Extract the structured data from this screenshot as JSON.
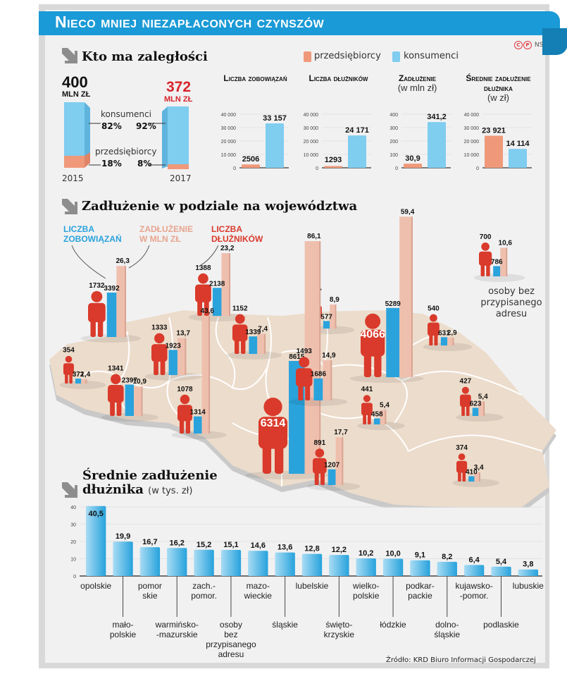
{
  "header": {
    "title": "Nieco mniej niezapłaconych czynszów",
    "credit": {
      "icons": [
        "copyright-icon",
        "p-icon"
      ],
      "author": "NS"
    }
  },
  "colors": {
    "banner": "#1a9ad6",
    "przedsiebiorcy": "#f0997a",
    "konsumenci": "#7fcdef",
    "count_bar": "#2aa3dc",
    "debt_bar": "#efbfae",
    "debtors_figure": "#d93a2b",
    "map_fill": "#ecdccb",
    "highlight_red": "#d8232a"
  },
  "section1": {
    "heading": "Kto ma zaległości",
    "legend": [
      {
        "label": "przedsiębiorcy",
        "color": "#f0997a"
      },
      {
        "label": "konsumenci",
        "color": "#7fcdef"
      }
    ],
    "totals": {
      "y2015": {
        "value": "400",
        "unit": "MLN ZŁ",
        "year": "2015"
      },
      "y2017": {
        "value": "372",
        "unit": "MLN ZŁ",
        "year": "2017"
      },
      "konsumenci_label": "konsumenci",
      "przedsiebiorcy_label": "przedsiębiorcy",
      "konsumenci_2015": "82%",
      "konsumenci_2017": "92%",
      "przedsiebiorcy_2015": "18%",
      "przedsiebiorcy_2017": "8%"
    }
  },
  "section2": {
    "heading": "Zadłużenie w podziale na województwa",
    "legend": {
      "count": "LICZBA ZOBOWIĄZAŃ",
      "debt": "ZADŁUŻENIE W MLN ZŁ",
      "debtors": "LICZBA DŁUŻNIKÓW"
    },
    "special_region_label": "osoby bez przypisanego adresu"
  },
  "section3": {
    "heading_line1": "Średnie zadłużenie",
    "heading_line2": "dłużnika",
    "unit": "(w tys. zł)"
  },
  "source": "Źródło: KRD Biuro Informacji Gospodarczej",
  "chart_data": [
    {
      "type": "bar",
      "title": "Kto ma zaległości – struktura zadłużenia",
      "categories": [
        "2015",
        "2017"
      ],
      "totals_mln_zl": [
        400,
        372
      ],
      "series": [
        {
          "name": "konsumenci",
          "values_pct": [
            82,
            92
          ]
        },
        {
          "name": "przedsiębiorcy",
          "values_pct": [
            18,
            8
          ]
        }
      ]
    },
    {
      "type": "bar",
      "title": "Liczba zobowiązań",
      "categories": [
        "przedsiębiorcy",
        "konsumenci"
      ],
      "values": [
        2506,
        33157
      ],
      "value_labels": [
        "2506",
        "33 157"
      ],
      "yticks": [
        "0",
        "10 000",
        "20 000",
        "30 000",
        "40 000"
      ],
      "ylim": [
        0,
        40000
      ]
    },
    {
      "type": "bar",
      "title": "Liczba dłużników",
      "categories": [
        "przedsiębiorcy",
        "konsumenci"
      ],
      "values": [
        1293,
        24171
      ],
      "value_labels": [
        "1293",
        "24 171"
      ],
      "yticks": [
        "0",
        "10 000",
        "20 000",
        "30 000",
        "40 000"
      ],
      "ylim": [
        0,
        40000
      ]
    },
    {
      "type": "bar",
      "title": "Zadłużenie",
      "subtitle": "(w mln zł)",
      "categories": [
        "przedsiębiorcy",
        "konsumenci"
      ],
      "values": [
        30.9,
        341.2
      ],
      "value_labels": [
        "30,9",
        "341,2"
      ],
      "yticks": [
        "0",
        "100",
        "200",
        "300",
        "400"
      ],
      "ylim": [
        0,
        400
      ]
    },
    {
      "type": "bar",
      "title": "Średnie zadłużenie dłużnika",
      "subtitle": "(w zł)",
      "categories": [
        "przedsiębiorcy",
        "konsumenci"
      ],
      "values": [
        23921,
        14114
      ],
      "value_labels": [
        "23 921",
        "14 114"
      ],
      "yticks": [
        "0",
        "10 000",
        "20 000",
        "30 000",
        "40 000"
      ],
      "ylim": [
        0,
        40000
      ]
    },
    {
      "type": "bar",
      "title": "Zadłużenie w podziale na województwa",
      "series_names": [
        "Liczba dłużników",
        "Liczba zobowiązań",
        "Zadłużenie w mln zł"
      ],
      "regions": [
        {
          "name": "zachodniopomorskie",
          "debtors": 1732,
          "obligations": 3392,
          "debt": "26,3",
          "debt_num": 26.3
        },
        {
          "name": "pomorskie",
          "debtors": 1388,
          "obligations": 2138,
          "debt": "23,2",
          "debt_num": 23.2
        },
        {
          "name": "warmińsko-mazurskie",
          "debtors": 547,
          "obligations": 577,
          "debt": "8,9",
          "debt_num": 8.9
        },
        {
          "name": "podlaskie",
          "debtors": 540,
          "obligations": 631,
          "debt": "2,9",
          "debt_num": 2.9
        },
        {
          "name": "lubuskie",
          "debtors": 354,
          "obligations": 372,
          "debt": "1,4",
          "debt_num": 1.4
        },
        {
          "name": "wielkopolskie",
          "debtors": 1333,
          "obligations": 1923,
          "debt": "13,7",
          "debt_num": 13.7
        },
        {
          "name": "kujawsko-pomorskie",
          "debtors": 1152,
          "obligations": 1339,
          "debt": "7,4",
          "debt_num": 7.4
        },
        {
          "name": "mazowieckie",
          "debtors": 4066,
          "obligations": 5289,
          "debt": "59,4",
          "debt_num": 59.4
        },
        {
          "name": "dolnośląskie",
          "debtors": 1341,
          "obligations": 2397,
          "debt": "10,9",
          "debt_num": 10.9
        },
        {
          "name": "opolskie",
          "debtors": 1078,
          "obligations": 1314,
          "debt": "43,6",
          "debt_num": 43.6
        },
        {
          "name": "śląskie",
          "debtors": 6314,
          "obligations": 8615,
          "debt": "86,1",
          "debt_num": 86.1
        },
        {
          "name": "łódzkie",
          "debtors": 1493,
          "obligations": 1686,
          "debt": "14,9",
          "debt_num": 14.9
        },
        {
          "name": "świętokrzyskie",
          "debtors": 441,
          "obligations": 458,
          "debt": "5,4",
          "debt_num": 5.4
        },
        {
          "name": "lubelskie",
          "debtors": 427,
          "obligations": 623,
          "debt": "5,4",
          "debt_num": 5.4
        },
        {
          "name": "małopolskie",
          "debtors": 891,
          "obligations": 1207,
          "debt": "17,7",
          "debt_num": 17.7
        },
        {
          "name": "podkarpackie",
          "debtors": 374,
          "obligations": 410,
          "debt": "3,4",
          "debt_num": 3.4
        },
        {
          "name": "osoby bez przypisanego adresu",
          "debtors": 700,
          "obligations": 786,
          "debt": "10,6",
          "debt_num": 10.6
        }
      ]
    },
    {
      "type": "bar",
      "title": "Średnie zadłużenie dłużnika",
      "ylabel": "(w tys. zł)",
      "ylim": [
        0,
        40
      ],
      "yticks": [
        "0",
        "10",
        "20",
        "30",
        "40"
      ],
      "grid": true,
      "categories": [
        "opolskie",
        "mało-polskie",
        "pomorskie",
        "warmińsko-mazurskie",
        "zach.-pomor.",
        "osoby bez przypisanego adresu",
        "mazowieckie",
        "śląskie",
        "lubelskie",
        "świętokrzyskie",
        "wielkopolskie",
        "łódzkie",
        "podkarpackie",
        "dolnośląskie",
        "kujawsko-pomor.",
        "podlaskie",
        "lubuskie"
      ],
      "tick_labels": [
        "opolskie",
        "mało-\npolskie",
        "pomor\nskie",
        "warmińsko-\n-mazurskie",
        "zach.-\npomor.",
        "osoby\nbez\nprzypisanego\nadresu",
        "mazo-\nwieckie",
        "śląskie",
        "lubelskie",
        "święto-\nkrzyskie",
        "wielko-\npolskie",
        "łódzkie",
        "podkar-\npackie",
        "dolno-\nśląskie",
        "kujawsko-\n-pomor.",
        "podlaskie",
        "lubuskie"
      ],
      "values": [
        40.5,
        19.9,
        16.7,
        16.2,
        15.2,
        15.1,
        14.6,
        13.6,
        12.8,
        12.2,
        10.2,
        10.0,
        9.1,
        8.2,
        6.4,
        5.4,
        3.8
      ],
      "value_labels": [
        "40,5",
        "19,9",
        "16,7",
        "16,2",
        "15,2",
        "15,1",
        "14,6",
        "13,6",
        "12,8",
        "12,2",
        "10,2",
        "10,0",
        "9,1",
        "8,2",
        "6,4",
        "5,4",
        "3,8"
      ]
    }
  ]
}
